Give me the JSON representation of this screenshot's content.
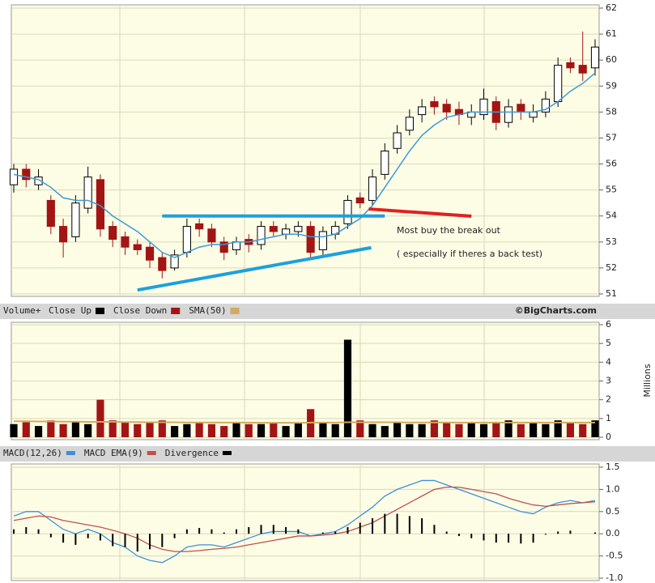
{
  "chart_data": [
    {
      "type": "candlestick",
      "open": [
        55.2,
        55.8,
        55.2,
        54.6,
        53.6,
        53.2,
        54.3,
        55.4,
        53.6,
        53.2,
        52.9,
        52.8,
        52.4,
        52.0,
        52.6,
        53.7,
        53.5,
        53.0,
        52.7,
        53.1,
        52.9,
        53.6,
        53.3,
        53.4,
        53.6,
        52.7,
        53.3,
        53.7,
        54.7,
        54.6,
        55.6,
        56.6,
        57.3,
        57.9,
        58.4,
        58.3,
        58.1,
        57.8,
        57.9,
        58.4,
        57.6,
        58.3,
        57.8,
        58.0,
        58.4,
        59.9,
        59.8,
        59.7
      ],
      "high": [
        56.0,
        56.0,
        55.8,
        54.8,
        53.9,
        54.8,
        55.9,
        55.6,
        53.8,
        53.4,
        53.1,
        53.0,
        52.6,
        52.7,
        53.9,
        53.9,
        53.7,
        53.2,
        53.2,
        53.3,
        53.8,
        53.8,
        53.7,
        53.8,
        53.8,
        53.6,
        53.8,
        54.8,
        54.9,
        55.8,
        56.8,
        57.5,
        58.1,
        58.5,
        58.6,
        58.5,
        58.4,
        58.3,
        58.9,
        58.6,
        58.5,
        58.5,
        58.3,
        58.8,
        60.1,
        60.1,
        61.1,
        60.8
      ],
      "low": [
        54.9,
        55.1,
        55.0,
        53.3,
        52.4,
        53.0,
        54.1,
        53.2,
        52.8,
        52.5,
        52.5,
        52.0,
        51.6,
        51.9,
        52.4,
        53.2,
        52.8,
        52.3,
        52.5,
        52.6,
        52.7,
        53.2,
        53.1,
        53.2,
        52.4,
        52.5,
        53.1,
        53.5,
        54.3,
        54.4,
        55.4,
        56.4,
        57.1,
        57.6,
        57.9,
        57.7,
        57.5,
        57.5,
        57.7,
        57.3,
        57.4,
        57.7,
        57.6,
        57.8,
        58.2,
        59.5,
        59.2,
        59.4
      ],
      "close": [
        55.8,
        55.4,
        55.5,
        53.6,
        53.0,
        54.5,
        55.5,
        53.5,
        53.1,
        52.8,
        52.7,
        52.3,
        51.9,
        52.5,
        53.6,
        53.5,
        53.0,
        52.6,
        53.0,
        52.9,
        53.6,
        53.4,
        53.5,
        53.6,
        52.6,
        53.4,
        53.6,
        54.6,
        54.5,
        55.5,
        56.5,
        57.2,
        57.8,
        58.2,
        58.2,
        58.0,
        57.9,
        58.0,
        58.5,
        57.6,
        58.2,
        58.0,
        58.0,
        58.5,
        59.8,
        59.7,
        59.5,
        60.5
      ],
      "up_color": "#000000",
      "down_color": "#a31515",
      "overlay": {
        "color": "#3d9ad6",
        "values": [
          55.6,
          55.5,
          55.4,
          55.1,
          54.7,
          54.6,
          54.6,
          54.4,
          54.0,
          53.7,
          53.4,
          53.0,
          52.6,
          52.4,
          52.6,
          52.8,
          52.9,
          52.9,
          53.0,
          53.0,
          53.1,
          53.2,
          53.3,
          53.3,
          53.2,
          53.2,
          53.3,
          53.6,
          53.9,
          54.4,
          55.1,
          55.8,
          56.5,
          57.1,
          57.5,
          57.8,
          57.9,
          58.0,
          58.0,
          58.0,
          58.0,
          58.0,
          58.0,
          58.1,
          58.4,
          58.8,
          59.1,
          59.5
        ]
      },
      "ylim": [
        51,
        62
      ],
      "yticks": [
        51,
        52,
        53,
        54,
        55,
        56,
        57,
        58,
        59,
        60,
        61,
        62
      ],
      "grid": true,
      "trend_lines": [
        {
          "x": [
            12,
            30
          ],
          "y": [
            54,
            54
          ],
          "color": "#1ea0dc"
        },
        {
          "x": [
            10,
            28.9
          ],
          "y": [
            51.15,
            52.78
          ],
          "color": "#1ea0dc"
        },
        {
          "x": [
            28.7,
            37
          ],
          "y": [
            54.27,
            53.99
          ],
          "color": "#e02020"
        }
      ],
      "annotations": [
        {
          "text": "Most buy the break out",
          "color": "#e02020"
        },
        {
          "text": "( especially if theres a back test)",
          "color": "#e02020"
        }
      ],
      "credit": "©BigCharts.com"
    },
    {
      "type": "volume",
      "legend_title": "Volume+",
      "up": {
        "name": "Close Up",
        "color": "#000000"
      },
      "down": {
        "name": "Close Down",
        "color": "#a31515"
      },
      "values": [
        0.7,
        0.8,
        0.6,
        0.9,
        0.7,
        0.8,
        0.7,
        2.0,
        0.9,
        0.8,
        0.7,
        0.8,
        0.9,
        0.6,
        0.7,
        0.8,
        0.7,
        0.6,
        0.8,
        0.7,
        0.7,
        0.8,
        0.6,
        0.8,
        1.5,
        0.8,
        0.7,
        5.2,
        0.9,
        0.7,
        0.6,
        0.8,
        0.7,
        0.7,
        0.9,
        0.8,
        0.7,
        0.8,
        0.7,
        0.8,
        0.9,
        0.7,
        0.8,
        0.7,
        0.9,
        0.8,
        0.7,
        0.9
      ],
      "sma": {
        "name": "SMA(50)",
        "color": "#d4a860",
        "values": [
          0.85,
          0.85,
          0.84,
          0.84,
          0.83,
          0.83,
          0.82,
          0.82,
          0.82,
          0.81,
          0.81,
          0.8,
          0.8,
          0.8,
          0.79,
          0.79,
          0.79,
          0.78,
          0.78,
          0.78,
          0.77,
          0.77,
          0.77,
          0.77,
          0.78,
          0.78,
          0.78,
          0.8,
          0.8,
          0.8,
          0.8,
          0.8,
          0.79,
          0.79,
          0.79,
          0.79,
          0.78,
          0.78,
          0.78,
          0.78,
          0.78,
          0.78,
          0.78,
          0.78,
          0.78,
          0.78,
          0.78,
          0.78
        ]
      },
      "ylabel": "Millions",
      "ylim": [
        0,
        6
      ],
      "yticks": [
        0,
        1,
        2,
        3,
        4,
        5,
        6
      ],
      "grid": true
    },
    {
      "type": "macd",
      "series": [
        {
          "name": "MACD(12,26)",
          "color": "#3d8fd9",
          "values": [
            0.4,
            0.5,
            0.5,
            0.3,
            0.1,
            0.0,
            0.1,
            0.0,
            -0.2,
            -0.3,
            -0.5,
            -0.6,
            -0.65,
            -0.5,
            -0.3,
            -0.25,
            -0.25,
            -0.3,
            -0.2,
            -0.1,
            0.0,
            0.05,
            0.05,
            0.05,
            -0.05,
            0.0,
            0.05,
            0.2,
            0.4,
            0.6,
            0.85,
            1.0,
            1.1,
            1.2,
            1.2,
            1.1,
            1.0,
            0.9,
            0.8,
            0.7,
            0.6,
            0.5,
            0.45,
            0.6,
            0.7,
            0.75,
            0.7,
            0.75
          ]
        },
        {
          "name": "MACD EMA(9)",
          "color": "#c0504d",
          "values": [
            0.3,
            0.35,
            0.4,
            0.38,
            0.3,
            0.25,
            0.2,
            0.15,
            0.08,
            0,
            -0.1,
            -0.25,
            -0.35,
            -0.4,
            -0.4,
            -0.38,
            -0.35,
            -0.33,
            -0.3,
            -0.25,
            -0.2,
            -0.15,
            -0.1,
            -0.05,
            -0.05,
            -0.03,
            0,
            0.05,
            0.15,
            0.25,
            0.4,
            0.55,
            0.7,
            0.85,
            1.0,
            1.05,
            1.05,
            1.0,
            0.95,
            0.9,
            0.8,
            0.72,
            0.65,
            0.62,
            0.65,
            0.68,
            0.7,
            0.72
          ]
        },
        {
          "name": "Divergence",
          "color": "#000000",
          "values": [
            0.1,
            0.15,
            0.1,
            -0.08,
            -0.2,
            -0.25,
            -0.1,
            -0.15,
            -0.28,
            -0.3,
            -0.4,
            -0.35,
            -0.3,
            -0.1,
            0.1,
            0.13,
            0.1,
            0.03,
            0.1,
            0.15,
            0.2,
            0.2,
            0.15,
            0.1,
            0,
            0.03,
            0.05,
            0.15,
            0.25,
            0.35,
            0.45,
            0.45,
            0.4,
            0.35,
            0.2,
            0.05,
            -0.05,
            -0.1,
            -0.15,
            -0.2,
            -0.2,
            -0.22,
            -0.2,
            -0.02,
            0.05,
            0.07,
            0,
            0.03
          ]
        }
      ],
      "ylim": [
        -1,
        1.5
      ],
      "yticks": [
        1.5,
        {
          "value": 1,
          "label": "1.0"
        },
        0.5,
        {
          "value": 0,
          "label": "0.0"
        },
        -0.5,
        {
          "value": -1,
          "label": "-1.0"
        }
      ],
      "grid": true
    }
  ]
}
